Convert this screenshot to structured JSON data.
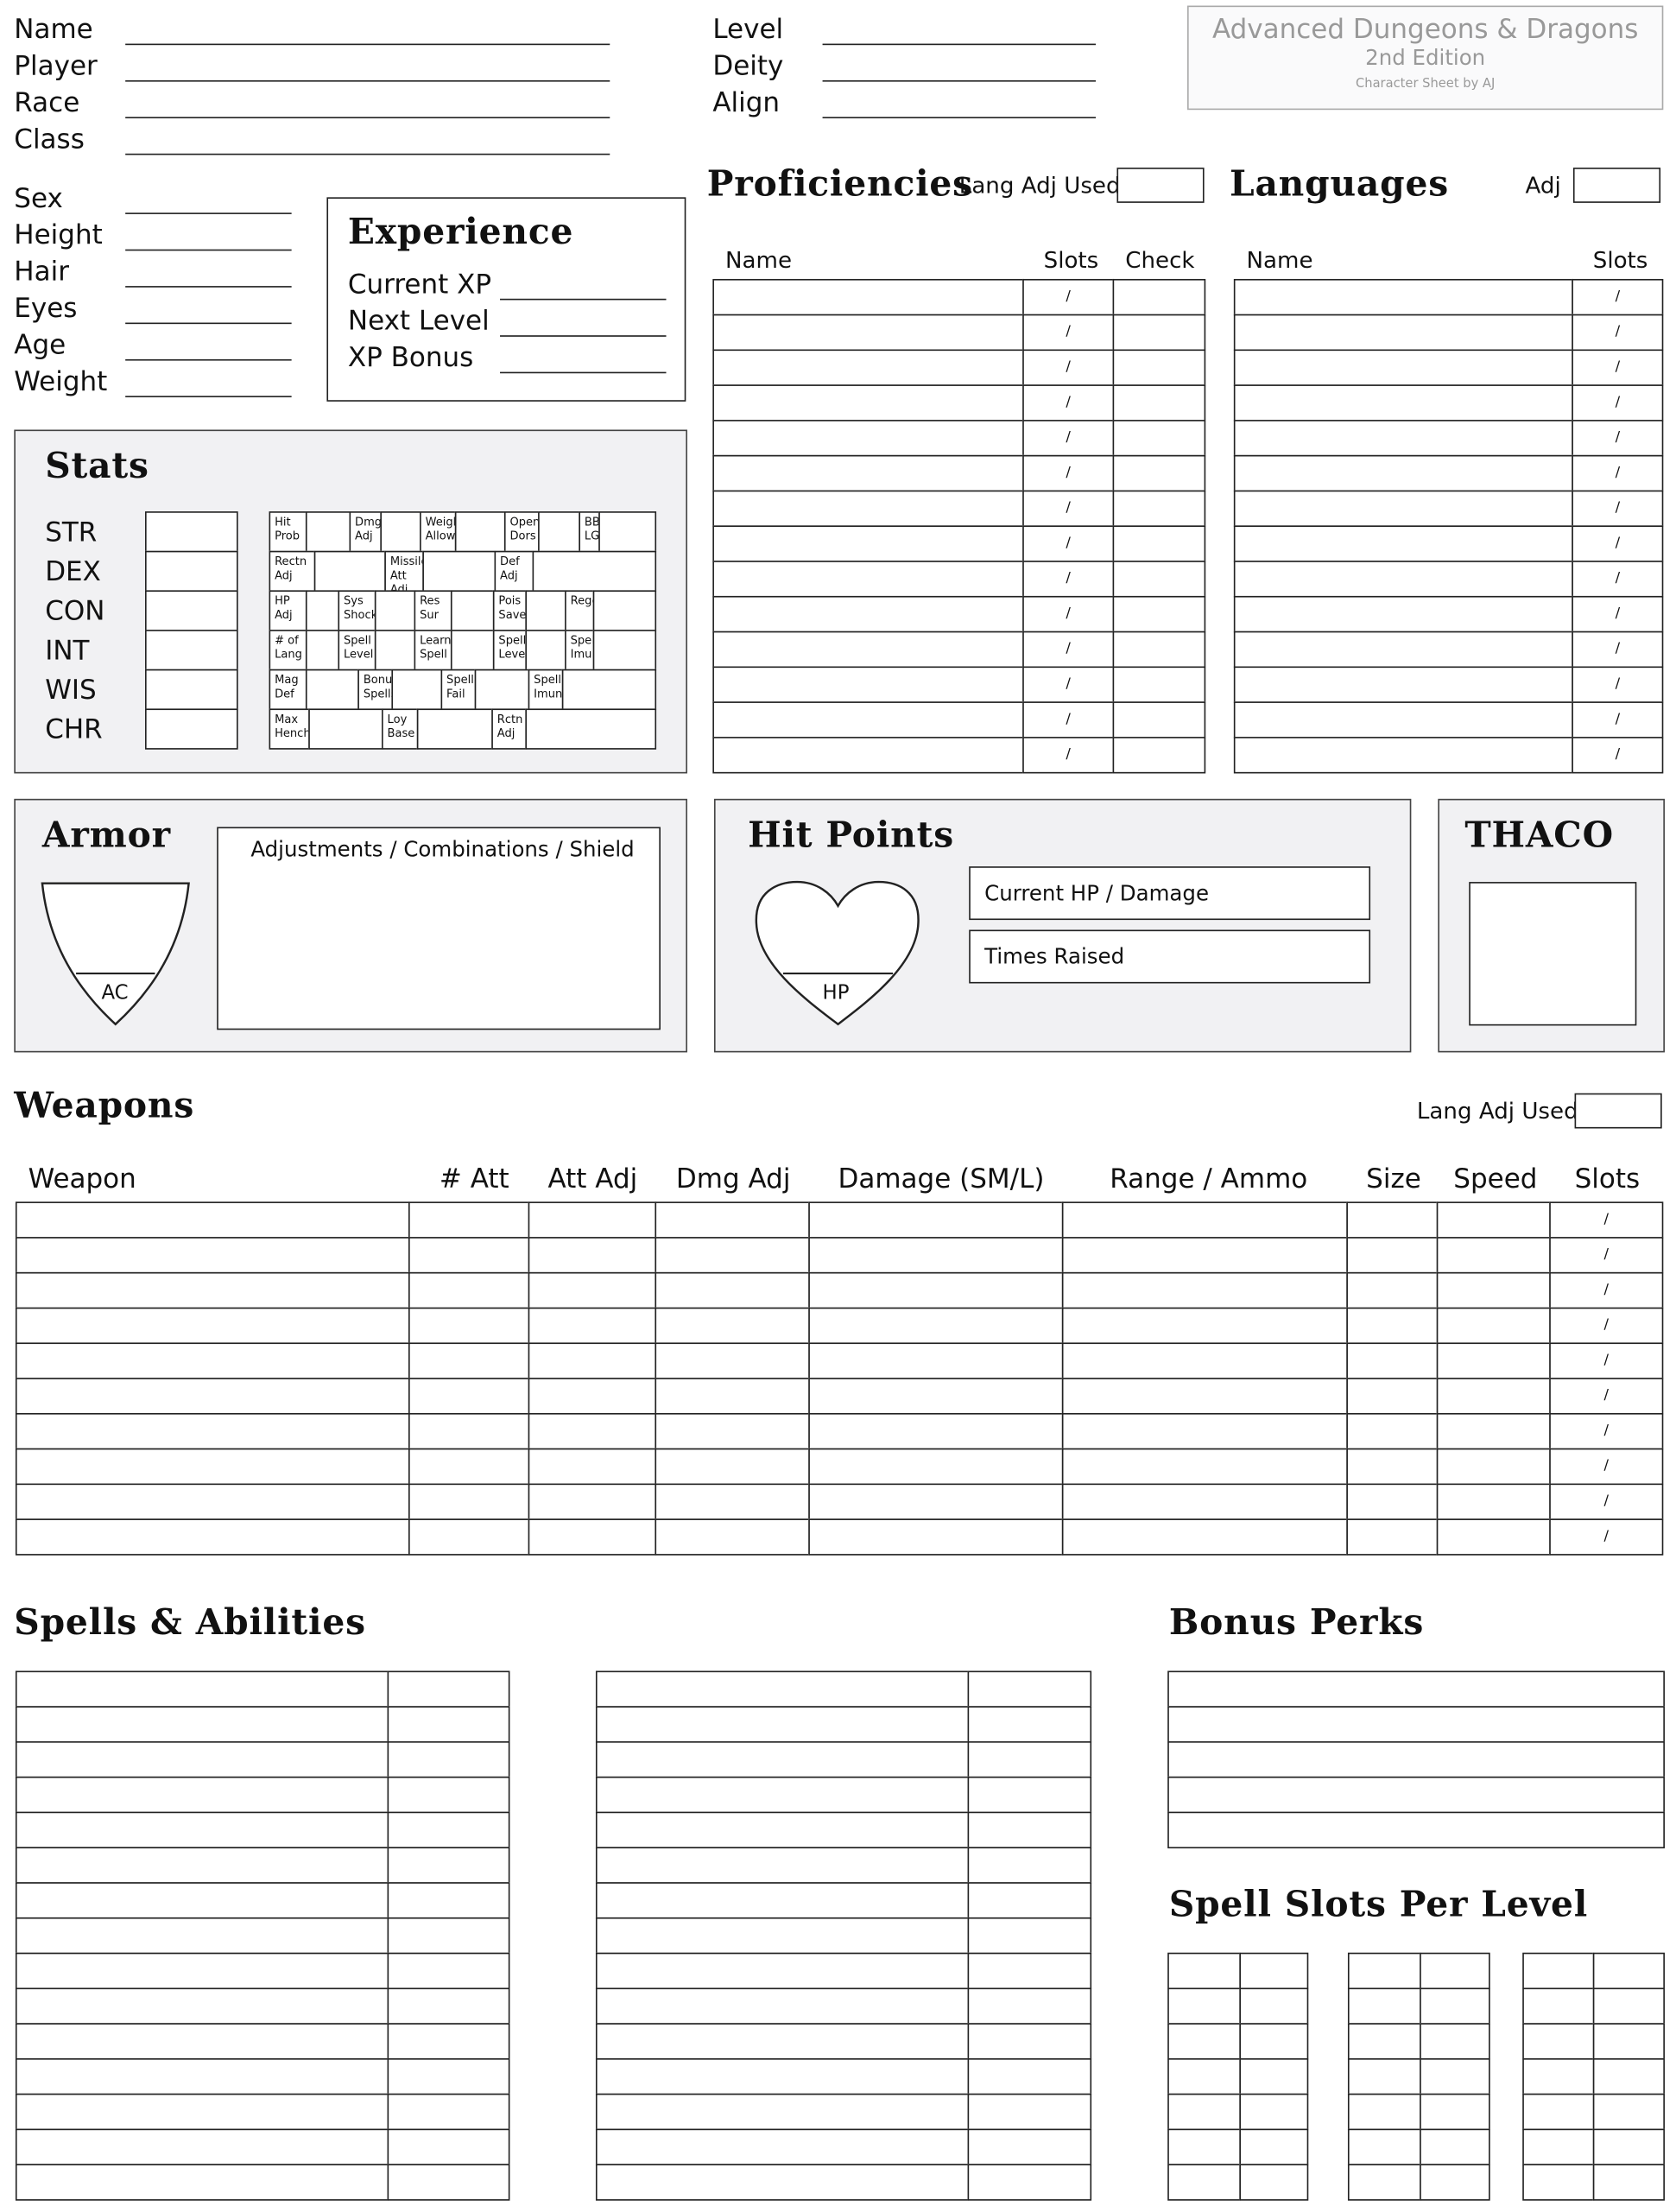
{
  "title_box": {
    "title": "Advanced Dungeons & Dragons",
    "edition": "2nd Edition",
    "credit": "Character Sheet by AJ"
  },
  "identity": {
    "fields": [
      "Name",
      "Player",
      "Race",
      "Class"
    ],
    "right_fields": [
      "Level",
      "Deity",
      "Align"
    ],
    "physical": [
      "Sex",
      "Height",
      "Hair",
      "Eyes",
      "Age",
      "Weight"
    ]
  },
  "experience": {
    "title": "Experience",
    "fields": [
      "Current XP",
      "Next Level",
      "XP Bonus"
    ]
  },
  "stats": {
    "title": "Stats",
    "abilities": [
      "STR",
      "DEX",
      "CON",
      "INT",
      "WIS",
      "CHR"
    ],
    "sub_rows": [
      [
        "Hit Prob",
        "Dmg Adj",
        "Weight Allow",
        "Open Dors",
        "BB/ LG"
      ],
      [
        "Rectn Adj",
        "Missile Att Adj",
        "Def Adj"
      ],
      [
        "HP Adj",
        "Sys Shock",
        "Res Sur",
        "Pois Save",
        "Regen"
      ],
      [
        "# of Lang",
        "Spell Level",
        "Learn Spell",
        "Spells Level",
        "Spell Imun"
      ],
      [
        "Mag Def",
        "Bonus Spells",
        "Spell Fail",
        "Spell Imun"
      ],
      [
        "Max Hench",
        "Loy Base",
        "Rctn Adj"
      ]
    ]
  },
  "proficiencies": {
    "title": "Proficiencies",
    "lang_adj_used": "Lang Adj Used",
    "headers": [
      "Name",
      "Slots",
      "Check"
    ],
    "slot_sep": "/"
  },
  "languages": {
    "title": "Languages",
    "adj": "Adj",
    "headers": [
      "Name",
      "Slots"
    ],
    "slot_sep": "/"
  },
  "armor": {
    "title": "Armor",
    "ac": "AC",
    "adjustments": "Adjustments / Combinations / Shield"
  },
  "hit_points": {
    "title": "Hit Points",
    "hp": "HP",
    "current": "Current HP / Damage",
    "raised": "Times Raised"
  },
  "thaco": {
    "title": "THACO"
  },
  "weapons": {
    "title": "Weapons",
    "lang_adj_used": "Lang Adj Used",
    "headers": [
      "Weapon",
      "# Att",
      "Att Adj",
      "Dmg Adj",
      "Damage (SM/L)",
      "Range / Ammo",
      "Size",
      "Speed",
      "Slots"
    ],
    "slot_sep": "/"
  },
  "spells": {
    "title": "Spells & Abilities"
  },
  "bonus_perks": {
    "title": "Bonus Perks"
  },
  "spell_slots": {
    "title": "Spell Slots Per Level"
  }
}
